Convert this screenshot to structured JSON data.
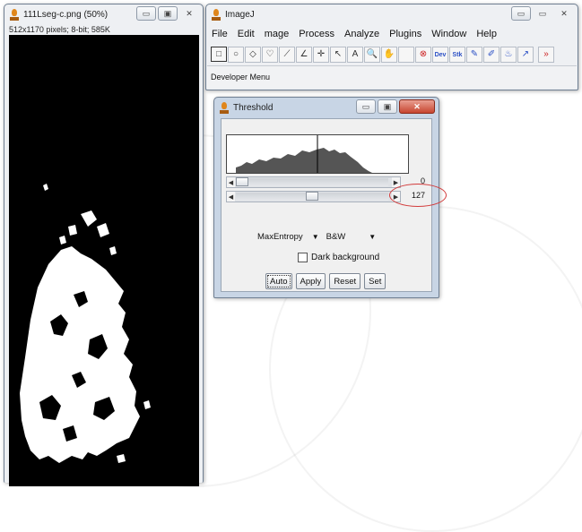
{
  "image_window": {
    "title": "111Lseg-c.png (50%)",
    "info": "512x1170 pixels; 8-bit; 585K"
  },
  "imagej_window": {
    "title": "ImageJ",
    "menu": [
      "File",
      "Edit",
      "mage",
      "Process",
      "Analyze",
      "Plugins",
      "Window",
      "Help"
    ],
    "tools": [
      {
        "name": "rectangle-tool-icon",
        "glyph": "□"
      },
      {
        "name": "oval-tool-icon",
        "glyph": "○"
      },
      {
        "name": "polygon-tool-icon",
        "glyph": "◇"
      },
      {
        "name": "freehand-tool-icon",
        "glyph": "♡"
      },
      {
        "name": "line-tool-icon",
        "glyph": "⟋"
      },
      {
        "name": "angle-tool-icon",
        "glyph": "∠"
      },
      {
        "name": "point-tool-icon",
        "glyph": "✛"
      },
      {
        "name": "wand-tool-icon",
        "glyph": "↖"
      },
      {
        "name": "text-tool-icon",
        "glyph": "A"
      },
      {
        "name": "magnifier-tool-icon",
        "glyph": "🔍"
      },
      {
        "name": "hand-tool-icon",
        "glyph": "✋"
      },
      {
        "name": "dropper-tool-icon",
        "glyph": " "
      },
      {
        "name": "stop-tool-icon",
        "glyph": "⊗"
      },
      {
        "name": "developer-menu-tool-icon",
        "glyph": "Dev"
      },
      {
        "name": "stack-tool-icon",
        "glyph": "Stk"
      },
      {
        "name": "pencil-tool-icon",
        "glyph": "✎"
      },
      {
        "name": "brush-tool-icon",
        "glyph": "✐"
      },
      {
        "name": "flood-fill-tool-icon",
        "glyph": "♨"
      },
      {
        "name": "arrow-tool-icon",
        "glyph": "↗"
      },
      {
        "name": "more-tools-icon",
        "glyph": "»"
      }
    ],
    "status": "Developer Menu"
  },
  "threshold_dialog": {
    "title": "Threshold",
    "min_value": "0",
    "max_value": "127",
    "min_slider_fraction": 0,
    "max_slider_fraction": 0.5,
    "method": "MaxEntropy",
    "display": "B&W",
    "dark_background_label": "Dark background",
    "dark_background_checked": false,
    "buttons": {
      "auto": "Auto",
      "apply": "Apply",
      "reset": "Reset",
      "set": "Set"
    }
  },
  "colors": {
    "annotation": "#d23b3b",
    "close_button": "#c7452f"
  }
}
